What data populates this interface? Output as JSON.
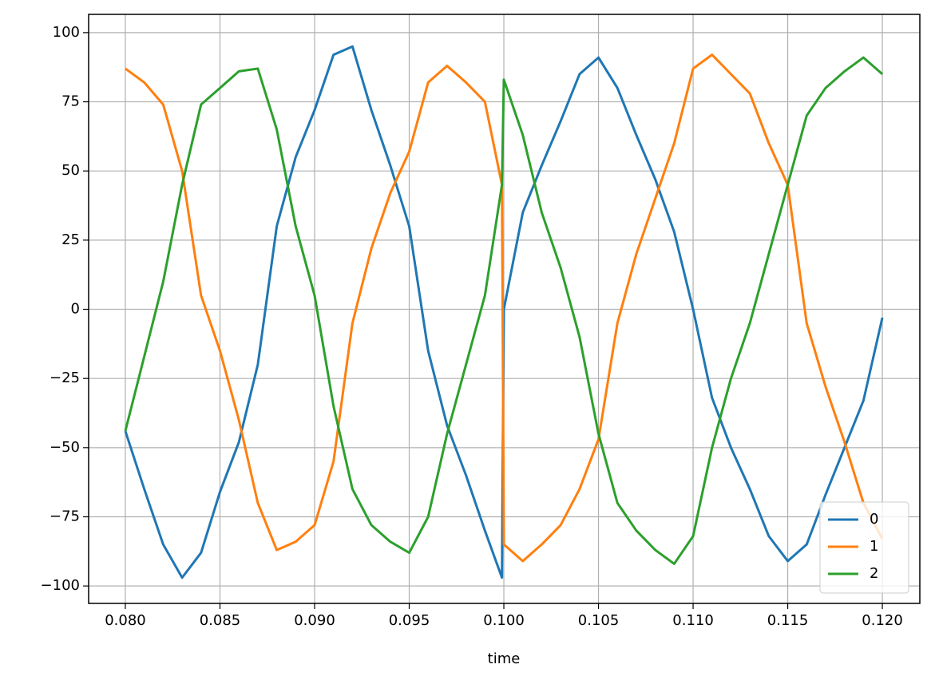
{
  "chart_data": {
    "type": "line",
    "x_label": "time",
    "x": [
      0.08,
      0.081,
      0.082,
      0.083,
      0.084,
      0.085,
      0.086,
      0.087,
      0.088,
      0.089,
      0.09,
      0.091,
      0.092,
      0.093,
      0.094,
      0.095,
      0.096,
      0.097,
      0.098,
      0.099,
      0.0999,
      0.1,
      0.101,
      0.102,
      0.103,
      0.104,
      0.105,
      0.106,
      0.107,
      0.108,
      0.109,
      0.11,
      0.111,
      0.112,
      0.113,
      0.114,
      0.115,
      0.116,
      0.117,
      0.118,
      0.119,
      0.12
    ],
    "series": [
      {
        "name": "0",
        "color": "#1f77b4",
        "values": [
          -44,
          -65,
          -85,
          -97,
          -88,
          -66,
          -48,
          -20,
          30,
          55,
          72,
          92,
          95,
          72,
          52,
          30,
          -15,
          -42,
          -60,
          -80,
          -97,
          0,
          35,
          52,
          68,
          85,
          91,
          80,
          63,
          47,
          28,
          0,
          -32,
          -50,
          -65,
          -82,
          -91,
          -85,
          -67,
          -50,
          -33,
          -3
        ]
      },
      {
        "name": "1",
        "color": "#ff7f0e",
        "values": [
          87,
          82,
          74,
          50,
          5,
          -15,
          -40,
          -70,
          -87,
          -84,
          -78,
          -55,
          -5,
          22,
          42,
          57,
          82,
          88,
          82,
          75,
          45,
          -85,
          -91,
          -85,
          -78,
          -65,
          -47,
          -5,
          20,
          40,
          60,
          87,
          92,
          85,
          78,
          60,
          45,
          -5,
          -28,
          -48,
          -70,
          -83
        ]
      },
      {
        "name": "2",
        "color": "#2ca02c",
        "values": [
          -44,
          -17,
          10,
          45,
          74,
          80,
          86,
          87,
          65,
          30,
          5,
          -35,
          -65,
          -78,
          -84,
          -88,
          -75,
          -45,
          -20,
          5,
          45,
          83,
          63,
          35,
          15,
          -10,
          -45,
          -70,
          -80,
          -87,
          -92,
          -82,
          -50,
          -25,
          -5,
          20,
          45,
          70,
          80,
          86,
          91,
          85
        ]
      }
    ],
    "xlim": [
      0.07806,
      0.12198
    ],
    "ylim": [
      -106.3,
      106.6
    ],
    "xticks": [
      {
        "value": 0.08,
        "label": "0.080"
      },
      {
        "value": 0.085,
        "label": "0.085"
      },
      {
        "value": 0.09,
        "label": "0.090"
      },
      {
        "value": 0.095,
        "label": "0.095"
      },
      {
        "value": 0.1,
        "label": "0.100"
      },
      {
        "value": 0.105,
        "label": "0.105"
      },
      {
        "value": 0.11,
        "label": "0.110"
      },
      {
        "value": 0.115,
        "label": "0.115"
      },
      {
        "value": 0.12,
        "label": "0.120"
      }
    ],
    "yticks": [
      {
        "value": -100,
        "label": "−100"
      },
      {
        "value": -75,
        "label": "−75"
      },
      {
        "value": -50,
        "label": "−50"
      },
      {
        "value": -25,
        "label": "−25"
      },
      0,
      25,
      50,
      75,
      100
    ],
    "grid": true,
    "legend": "lower right"
  }
}
